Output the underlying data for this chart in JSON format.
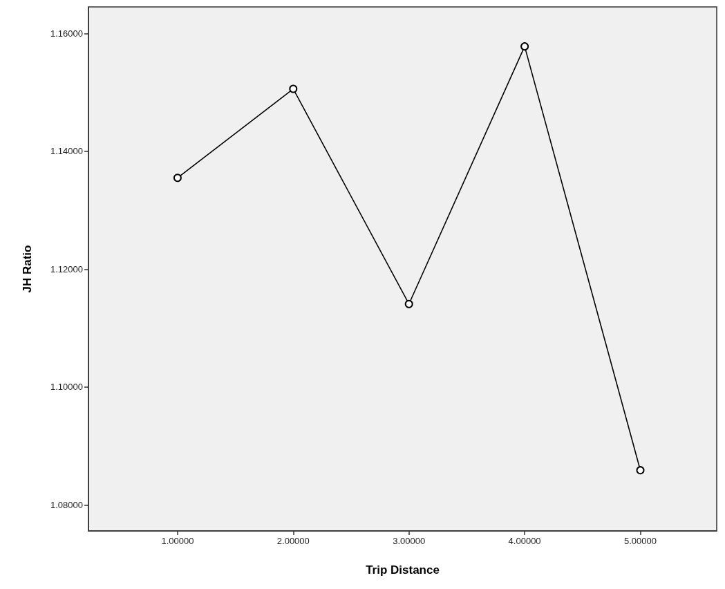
{
  "chart_data": {
    "type": "line",
    "xlabel": "Trip Distance",
    "ylabel": "JH Ratio",
    "x": [
      1,
      2,
      3,
      4,
      5
    ],
    "values": [
      1.1355,
      1.1506,
      1.1141,
      1.1578,
      1.0859
    ],
    "color": "#000000",
    "marker": "circle",
    "line_style": "solid",
    "xlim": [
      0.23,
      5.66
    ],
    "xticks": [
      {
        "value": 1,
        "label": "1.00000"
      },
      {
        "value": 2,
        "label": "2.00000"
      },
      {
        "value": 3,
        "label": "3.00000"
      },
      {
        "value": 4,
        "label": "4.00000"
      },
      {
        "value": 5,
        "label": "5.00000"
      }
    ],
    "ylim": [
      1.0756,
      1.1645
    ],
    "yticks": [
      {
        "value": 1.08,
        "label": "1.08000"
      },
      {
        "value": 1.1,
        "label": "1.10000"
      },
      {
        "value": 1.12,
        "label": "1.12000"
      },
      {
        "value": 1.14,
        "label": "1.14000"
      },
      {
        "value": 1.16,
        "label": "1.16000"
      }
    ]
  }
}
